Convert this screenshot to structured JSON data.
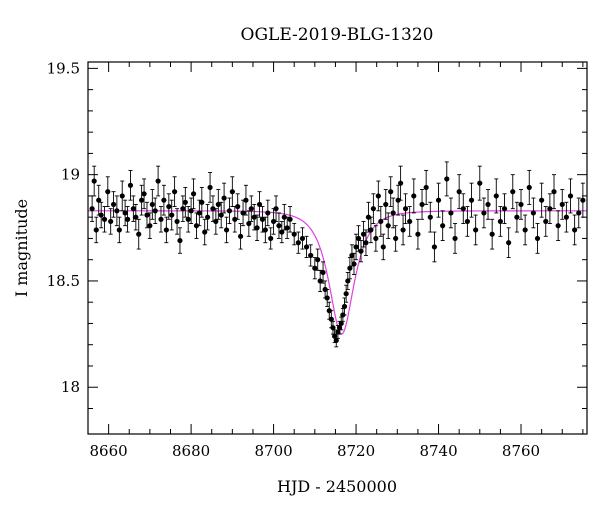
{
  "chart_data": {
    "type": "scatter",
    "title": "OGLE-2019-BLG-1320",
    "xlabel": "HJD - 2450000",
    "ylabel": "I magnitude",
    "xlim": [
      8655,
      8776
    ],
    "ylim": [
      19.53,
      17.78
    ],
    "y_inverted": true,
    "xticks": [
      8660,
      8680,
      8700,
      8720,
      8740,
      8760
    ],
    "xtick_labels": [
      "8660",
      "8680",
      "8700",
      "8720",
      "8740",
      "8760"
    ],
    "yticks": [
      18,
      18.5,
      19,
      19.5
    ],
    "ytick_labels": [
      "18",
      "18.5",
      "19",
      "19.5"
    ],
    "grid": false,
    "colors": {
      "points": "#000000",
      "model": "#e040e0",
      "frame": "#000000"
    },
    "series": [
      {
        "kind": "points-with-errorbars",
        "x": [
          8656.0,
          8656.5,
          8657.0,
          8657.6,
          8658.2,
          8659.0,
          8659.8,
          8660.5,
          8661.2,
          8662.0,
          8662.6,
          8663.3,
          8664.0,
          8664.6,
          8665.3,
          8666.0,
          8666.6,
          8667.3,
          8668.0,
          8668.6,
          8669.3,
          8670.0,
          8670.6,
          8671.3,
          8672.0,
          8672.7,
          8673.4,
          8674.0,
          8674.6,
          8675.3,
          8676.0,
          8676.6,
          8677.3,
          8678.0,
          8678.6,
          8679.3,
          8680.0,
          8680.6,
          8681.3,
          8682.0,
          8682.6,
          8683.3,
          8684.0,
          8684.6,
          8685.3,
          8686.0,
          8686.6,
          8687.3,
          8688.0,
          8688.6,
          8689.3,
          8690.0,
          8690.6,
          8691.3,
          8692.0,
          8692.6,
          8693.3,
          8694.0,
          8694.6,
          8695.3,
          8696.0,
          8696.6,
          8697.3,
          8698.0,
          8698.6,
          8699.3,
          8700.0,
          8700.6,
          8701.3,
          8702.0,
          8702.6,
          8703.3,
          8704.0,
          8705.0,
          8706.0,
          8707.0,
          8708.0,
          8709.0,
          8710.0,
          8710.7,
          8711.3,
          8712.0,
          8712.5,
          8713.0,
          8713.5,
          8714.0,
          8714.4,
          8714.8,
          8715.2,
          8715.6,
          8716.0,
          8716.4,
          8716.8,
          8717.2,
          8717.6,
          8718.0,
          8718.5,
          8719.0,
          8719.5,
          8720.0,
          8720.6,
          8721.2,
          8721.8,
          8722.4,
          8723.0,
          8723.6,
          8724.2,
          8724.8,
          8725.4,
          8726.0,
          8726.6,
          8727.2,
          8727.8,
          8728.4,
          8729.0,
          8729.6,
          8730.2,
          8730.8,
          8731.4,
          8732.0,
          8733.0,
          8734.0,
          8735.0,
          8736.0,
          8737.0,
          8738.0,
          8739.0,
          8740.0,
          8741.0,
          8742.0,
          8743.0,
          8744.0,
          8745.0,
          8746.0,
          8747.0,
          8748.0,
          8749.0,
          8750.0,
          8751.0,
          8752.0,
          8753.0,
          8754.0,
          8755.0,
          8756.0,
          8757.0,
          8758.0,
          8759.0,
          8760.0,
          8761.0,
          8762.0,
          8763.0,
          8764.0,
          8765.0,
          8766.0,
          8767.0,
          8768.0,
          8769.0,
          8770.0,
          8771.0,
          8772.0,
          8773.0,
          8774.0,
          8775.0
        ],
        "y": [
          18.84,
          18.97,
          18.74,
          18.88,
          18.81,
          18.79,
          18.92,
          18.78,
          18.86,
          18.83,
          18.74,
          18.9,
          18.82,
          18.79,
          18.95,
          18.84,
          18.8,
          18.72,
          18.88,
          18.91,
          18.81,
          18.76,
          18.86,
          18.83,
          18.97,
          18.79,
          18.88,
          18.74,
          18.85,
          18.81,
          18.92,
          18.78,
          18.69,
          18.84,
          18.87,
          18.79,
          18.83,
          18.91,
          18.76,
          18.82,
          18.87,
          18.73,
          18.8,
          18.94,
          18.84,
          18.78,
          18.86,
          18.81,
          18.89,
          18.74,
          18.83,
          18.92,
          18.79,
          18.85,
          18.71,
          18.82,
          18.88,
          18.77,
          18.84,
          18.8,
          18.75,
          18.86,
          18.79,
          18.74,
          18.82,
          18.7,
          18.78,
          18.84,
          18.76,
          18.73,
          18.8,
          18.75,
          18.79,
          18.72,
          18.68,
          18.7,
          18.66,
          18.62,
          18.56,
          18.6,
          18.5,
          18.54,
          18.46,
          18.42,
          18.36,
          18.32,
          18.28,
          18.24,
          18.22,
          18.26,
          18.28,
          18.3,
          18.34,
          18.38,
          18.44,
          18.5,
          18.56,
          18.62,
          18.58,
          18.66,
          18.7,
          18.64,
          18.72,
          18.68,
          18.8,
          18.74,
          18.84,
          18.7,
          18.9,
          18.78,
          18.66,
          18.86,
          18.76,
          18.92,
          18.82,
          18.7,
          18.88,
          18.96,
          18.74,
          18.84,
          18.78,
          18.9,
          18.72,
          18.86,
          18.94,
          18.8,
          18.66,
          18.88,
          18.76,
          18.98,
          18.82,
          18.7,
          18.92,
          18.84,
          18.78,
          18.88,
          18.74,
          18.96,
          18.82,
          18.86,
          18.72,
          18.9,
          18.78,
          18.84,
          18.68,
          18.92,
          18.8,
          18.86,
          18.74,
          18.94,
          18.82,
          18.7,
          18.88,
          18.78,
          18.84,
          18.92,
          18.76,
          18.86,
          18.8,
          18.9,
          18.74,
          18.82,
          18.88
        ],
        "yerr": [
          0.06,
          0.07,
          0.06,
          0.07,
          0.06,
          0.06,
          0.07,
          0.06,
          0.06,
          0.07,
          0.06,
          0.07,
          0.06,
          0.06,
          0.07,
          0.06,
          0.06,
          0.07,
          0.07,
          0.07,
          0.06,
          0.06,
          0.07,
          0.06,
          0.07,
          0.06,
          0.07,
          0.06,
          0.06,
          0.07,
          0.07,
          0.06,
          0.06,
          0.06,
          0.07,
          0.06,
          0.06,
          0.07,
          0.06,
          0.06,
          0.07,
          0.06,
          0.06,
          0.07,
          0.06,
          0.06,
          0.07,
          0.06,
          0.07,
          0.06,
          0.06,
          0.07,
          0.06,
          0.06,
          0.06,
          0.06,
          0.07,
          0.06,
          0.06,
          0.06,
          0.06,
          0.06,
          0.06,
          0.06,
          0.06,
          0.05,
          0.06,
          0.06,
          0.06,
          0.05,
          0.06,
          0.05,
          0.06,
          0.05,
          0.05,
          0.05,
          0.05,
          0.05,
          0.05,
          0.05,
          0.05,
          0.05,
          0.04,
          0.04,
          0.04,
          0.04,
          0.03,
          0.03,
          0.03,
          0.03,
          0.03,
          0.03,
          0.03,
          0.04,
          0.04,
          0.04,
          0.05,
          0.05,
          0.05,
          0.06,
          0.06,
          0.05,
          0.06,
          0.06,
          0.07,
          0.06,
          0.07,
          0.06,
          0.07,
          0.07,
          0.06,
          0.07,
          0.06,
          0.07,
          0.07,
          0.06,
          0.07,
          0.08,
          0.07,
          0.07,
          0.07,
          0.08,
          0.07,
          0.07,
          0.08,
          0.07,
          0.07,
          0.08,
          0.07,
          0.08,
          0.07,
          0.07,
          0.08,
          0.07,
          0.07,
          0.08,
          0.07,
          0.08,
          0.07,
          0.07,
          0.07,
          0.08,
          0.07,
          0.07,
          0.07,
          0.08,
          0.07,
          0.07,
          0.07,
          0.08,
          0.07,
          0.07,
          0.08,
          0.07,
          0.07,
          0.08,
          0.07,
          0.07,
          0.07,
          0.08,
          0.07,
          0.07,
          0.08
        ]
      },
      {
        "kind": "model-curve",
        "baseline": 18.83,
        "peak_mag": 18.25,
        "t0": 8716.5,
        "tE": 4.5
      }
    ]
  }
}
